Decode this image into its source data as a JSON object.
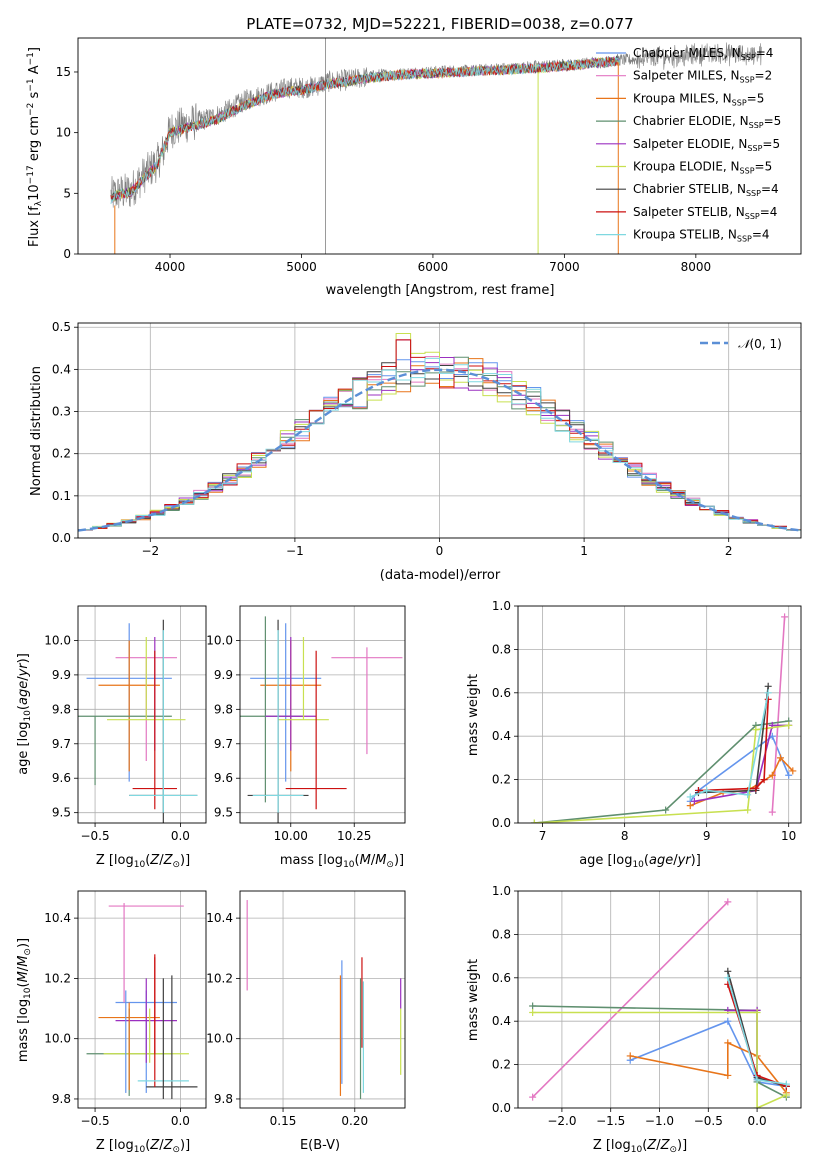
{
  "figure": {
    "title": "PLATE=0732, MJD=52221, FIBERID=0038, z=0.077"
  },
  "series": [
    {
      "name": "Chabrier MILES, N$_{SSP}$=4",
      "label_main": "Chabrier MILES, N",
      "label_sub": "SSP",
      "label_tail": "=4",
      "color": "#6495ED"
    },
    {
      "name": "Salpeter MILES, N$_{SSP}$=2",
      "label_main": "Salpeter MILES, N",
      "label_sub": "SSP",
      "label_tail": "=2",
      "color": "#E377C2"
    },
    {
      "name": "Kroupa MILES, N$_{SSP}$=5",
      "label_main": "Kroupa MILES, N",
      "label_sub": "SSP",
      "label_tail": "=5",
      "color": "#E8751A"
    },
    {
      "name": "Chabrier ELODIE, N$_{SSP}$=5",
      "label_main": "Chabrier ELODIE, N",
      "label_sub": "SSP",
      "label_tail": "=5",
      "color": "#5F8F6F"
    },
    {
      "name": "Salpeter ELODIE, N$_{SSP}$=5",
      "label_main": "Salpeter ELODIE, N",
      "label_sub": "SSP",
      "label_tail": "=5",
      "color": "#9B30C0"
    },
    {
      "name": "Kroupa ELODIE, N$_{SSP}$=5",
      "label_main": "Kroupa ELODIE, N",
      "label_sub": "SSP",
      "label_tail": "=5",
      "color": "#C8E050"
    },
    {
      "name": "Chabrier STELIB, N$_{SSP}$=4",
      "label_main": "Chabrier STELIB, N",
      "label_sub": "SSP",
      "label_tail": "=4",
      "color": "#404040"
    },
    {
      "name": "Salpeter STELIB, N$_{SSP}$=4",
      "label_main": "Salpeter STELIB, N",
      "label_sub": "SSP",
      "label_tail": "=4",
      "color": "#CC1111"
    },
    {
      "name": "Kroupa STELIB, N$_{SSP}$=4",
      "label_main": "Kroupa STELIB, N",
      "label_sub": "SSP",
      "label_tail": "=4",
      "color": "#7FD8E0"
    }
  ],
  "chart_data": [
    {
      "id": "spectrum",
      "type": "line",
      "xlabel": "wavelength [Angstrom, rest frame]",
      "ylabel": "Flux [f$_\\lambda$10$^{-17}$ erg cm$^{-2}$ s$^{-1}$ A$^{-1}$]",
      "ylabel_parts": {
        "a": "Flux [f",
        "b": "λ",
        "c": "10",
        "d": "−17",
        "e": " erg cm",
        "f": "−2",
        "g": " s",
        "h": "−1",
        "i": " A",
        "j": "−1",
        "k": "]"
      },
      "xlim": [
        3300,
        8800
      ],
      "ylim": [
        0,
        17.8
      ],
      "xticks": [
        4000,
        5000,
        6000,
        7000,
        8000
      ],
      "yticks": [
        0,
        5,
        10,
        15
      ],
      "observed": {
        "color": "#808080",
        "x": [
          3550,
          3600,
          3700,
          3800,
          3900,
          3950,
          4000,
          4100,
          4200,
          4300,
          4400,
          4500,
          4600,
          4700,
          4800,
          4900,
          5000,
          5100,
          5200,
          5300,
          5400,
          5500,
          5600,
          5700,
          5800,
          5900,
          6000,
          6100,
          6200,
          6300,
          6400,
          6500,
          6600,
          6700,
          6800,
          6900,
          7000,
          7100,
          7200,
          7300,
          7400,
          7500,
          7600,
          7700,
          7800,
          7900,
          8000,
          8100,
          8200,
          8300,
          8400,
          8500
        ],
        "y": [
          4.8,
          5.0,
          5.2,
          6.5,
          7.5,
          8.5,
          10.2,
          10.6,
          10.9,
          11.2,
          11.6,
          12.2,
          12.8,
          13.1,
          13.4,
          13.7,
          13.7,
          13.8,
          14.2,
          14.3,
          14.4,
          14.6,
          14.8,
          14.8,
          14.9,
          15.0,
          15.0,
          15.1,
          15.1,
          15.1,
          15.2,
          15.3,
          15.3,
          15.4,
          15.5,
          15.5,
          15.6,
          15.6,
          15.8,
          15.8,
          16.0,
          16.0,
          16.1,
          16.2,
          16.3,
          16.3,
          16.4,
          16.5,
          16.5,
          16.4,
          16.4,
          16.5
        ]
      },
      "model": {
        "x": [
          3550,
          3600,
          3700,
          3800,
          3900,
          4000,
          4100,
          4200,
          4300,
          4400,
          4500,
          4600,
          4700,
          4800,
          4900,
          5000,
          5200,
          5400,
          5600,
          5800,
          6000,
          6200,
          6400,
          6600,
          6800,
          7000,
          7200,
          7400
        ],
        "y": [
          4.5,
          4.9,
          5.1,
          6.2,
          7.3,
          10.0,
          10.3,
          10.6,
          10.9,
          11.3,
          11.9,
          12.4,
          12.8,
          13.2,
          13.4,
          13.5,
          14.0,
          14.3,
          14.6,
          14.8,
          14.9,
          15.0,
          15.1,
          15.2,
          15.3,
          15.5,
          15.7,
          15.9
        ]
      }
    },
    {
      "id": "residual_hist",
      "type": "histogram",
      "xlabel": "(data-model)/error",
      "ylabel": "Normed distribution",
      "xlim": [
        -2.5,
        2.5
      ],
      "ylim": [
        0,
        0.51
      ],
      "xticks": [
        -2,
        -1,
        0,
        1,
        2
      ],
      "yticks": [
        0.0,
        0.1,
        0.2,
        0.3,
        0.4,
        0.5
      ],
      "grid": true,
      "legend": {
        "label": "N(0,1)",
        "label_script": "𝒩",
        "label_rest": "(0, 1)",
        "position": "top-right",
        "style": "dashed"
      },
      "bin_edges_start": -2.5,
      "bin_width": 0.1,
      "bins": 50,
      "gaussian": {
        "mu": 0,
        "sigma": 1,
        "color": "#5B8FD6"
      }
    },
    {
      "id": "age_vs_Z",
      "type": "errorbar",
      "xlabel": "Z [log$_{10}$(Z/Z$_\\odot$)]",
      "ylabel": "age  [log$_{10}$(age/yr)]",
      "xlim": [
        -0.6,
        0.15
      ],
      "ylim": [
        9.47,
        10.1
      ],
      "xticks": [
        -0.5,
        0.0
      ],
      "yticks": [
        9.5,
        9.6,
        9.7,
        9.8,
        9.9,
        10.0
      ],
      "points": [
        {
          "series": 0,
          "x": -0.3,
          "y": 9.89,
          "xerr": 0.25,
          "yerr": [
            0.3,
            0.16
          ]
        },
        {
          "series": 1,
          "x": -0.2,
          "y": 9.95,
          "xerr": 0.18,
          "yerr": [
            0.3,
            0.0
          ]
        },
        {
          "series": 2,
          "x": -0.3,
          "y": 9.87,
          "xerr": 0.18,
          "yerr": [
            0.25,
            0.13
          ]
        },
        {
          "series": 3,
          "x": -0.5,
          "y": 9.78,
          "xerr": 0.45,
          "yerr": [
            0.2,
            0.0
          ]
        },
        {
          "series": 4,
          "x": -0.15,
          "y": 9.78,
          "xerr": 0.0,
          "yerr": [
            0.1,
            0.23
          ]
        },
        {
          "series": 5,
          "x": -0.2,
          "y": 9.77,
          "xerr": 0.23,
          "yerr": [
            0.0,
            0.24
          ]
        },
        {
          "series": 6,
          "x": -0.1,
          "y": 9.55,
          "xerr": 0.2,
          "yerr": [
            0.2,
            0.51
          ]
        },
        {
          "series": 7,
          "x": -0.15,
          "y": 9.57,
          "xerr": 0.13,
          "yerr": [
            0.06,
            0.4
          ]
        },
        {
          "series": 8,
          "x": -0.1,
          "y": 9.55,
          "xerr": 0.2,
          "yerr": [
            0.05,
            0.48
          ]
        }
      ]
    },
    {
      "id": "age_vs_mass",
      "type": "errorbar",
      "xlabel": "mass [log$_{10}$(M/M$_\\odot$)]",
      "ylabel": "",
      "xlim": [
        9.8,
        10.45
      ],
      "ylim": [
        9.47,
        10.1
      ],
      "xticks": [
        10.0,
        10.25
      ],
      "yticks": [
        9.5,
        9.6,
        9.7,
        9.8,
        9.9,
        10.0
      ],
      "points": [
        {
          "series": 0,
          "x": 9.98,
          "y": 9.89,
          "xerr": 0.14,
          "yerr": [
            0.3,
            0.16
          ]
        },
        {
          "series": 1,
          "x": 10.3,
          "y": 9.95,
          "xerr": 0.14,
          "yerr": [
            0.28,
            0.03
          ]
        },
        {
          "series": 2,
          "x": 10.0,
          "y": 9.87,
          "xerr": 0.12,
          "yerr": [
            0.25,
            0.13
          ]
        },
        {
          "series": 3,
          "x": 9.9,
          "y": 9.78,
          "xerr": 0.15,
          "yerr": [
            0.25,
            0.29
          ]
        },
        {
          "series": 4,
          "x": 10.0,
          "y": 9.78,
          "xerr": 0.1,
          "yerr": [
            0.1,
            0.23
          ]
        },
        {
          "series": 5,
          "x": 10.05,
          "y": 9.77,
          "xerr": 0.1,
          "yerr": [
            0.0,
            0.24
          ]
        },
        {
          "series": 6,
          "x": 9.95,
          "y": 9.55,
          "xerr": 0.12,
          "yerr": [
            0.2,
            0.51
          ]
        },
        {
          "series": 7,
          "x": 10.1,
          "y": 9.57,
          "xerr": 0.12,
          "yerr": [
            0.06,
            0.4
          ]
        },
        {
          "series": 8,
          "x": 9.95,
          "y": 9.55,
          "xerr": 0.1,
          "yerr": [
            0.05,
            0.48
          ]
        }
      ]
    },
    {
      "id": "weight_vs_age",
      "type": "line",
      "xlabel": "age  [log$_{10}$(age/yr)]",
      "ylabel": "mass weight",
      "xlim": [
        6.7,
        10.15
      ],
      "ylim": [
        0,
        1
      ],
      "xticks": [
        7,
        8,
        9,
        10
      ],
      "yticks": [
        0.0,
        0.2,
        0.4,
        0.6,
        0.8,
        1.0
      ],
      "grid": true,
      "lines": [
        {
          "series": 0,
          "x": [
            8.8,
            8.9,
            9.8,
            10.0
          ],
          "y": [
            0.1,
            0.15,
            0.4,
            0.22
          ]
        },
        {
          "series": 1,
          "x": [
            9.8,
            9.95
          ],
          "y": [
            0.05,
            0.95
          ]
        },
        {
          "series": 2,
          "x": [
            8.8,
            9.2,
            9.5,
            9.8,
            9.9,
            10.05
          ],
          "y": [
            0.08,
            0.14,
            0.15,
            0.22,
            0.3,
            0.24
          ]
        },
        {
          "series": 3,
          "x": [
            6.9,
            8.5,
            9.6,
            10.0
          ],
          "y": [
            0.0,
            0.06,
            0.45,
            0.47
          ]
        },
        {
          "series": 4,
          "x": [
            8.85,
            9.6,
            9.8,
            10.0
          ],
          "y": [
            0.1,
            0.15,
            0.45,
            0.45
          ]
        },
        {
          "series": 5,
          "x": [
            6.9,
            9.5,
            9.6,
            10.0
          ],
          "y": [
            0.0,
            0.06,
            0.43,
            0.45
          ]
        },
        {
          "series": 6,
          "x": [
            8.9,
            9.6,
            9.75
          ],
          "y": [
            0.14,
            0.15,
            0.63
          ]
        },
        {
          "series": 7,
          "x": [
            8.9,
            9.6,
            9.7,
            9.75
          ],
          "y": [
            0.15,
            0.16,
            0.2,
            0.57
          ]
        },
        {
          "series": 8,
          "x": [
            8.8,
            9.0,
            9.5,
            9.75
          ],
          "y": [
            0.12,
            0.15,
            0.13,
            0.6
          ]
        }
      ]
    },
    {
      "id": "mass_vs_Z",
      "type": "errorbar",
      "xlabel": "Z [log$_{10}$(Z/Z$_\\odot$)]",
      "ylabel": "mass [log$_{10}$(M/M$_\\odot$)]",
      "xlim": [
        -0.6,
        0.15
      ],
      "ylim": [
        9.77,
        10.49
      ],
      "xticks": [
        -0.5,
        0.0
      ],
      "yticks": [
        9.8,
        10.0,
        10.2,
        10.4
      ],
      "points": [
        {
          "series": 0,
          "x": -0.2,
          "y": 10.12,
          "xerr": 0.18,
          "yerr": [
            0.3,
            0.04
          ]
        },
        {
          "series": 1,
          "x": -0.2,
          "y": 10.44,
          "xerr": 0.22,
          "yerr": [
            0.0,
            0.0
          ]
        },
        {
          "series": 2,
          "x": -0.3,
          "y": 10.07,
          "xerr": 0.18,
          "yerr": [
            0.0,
            0.0
          ]
        },
        {
          "series": 3,
          "x": -0.3,
          "y": 9.95,
          "xerr": 0.25,
          "yerr": [
            0.14,
            0.15
          ]
        },
        {
          "series": 4,
          "x": -0.2,
          "y": 10.06,
          "xerr": 0.18,
          "yerr": [
            0.0,
            0.0
          ]
        },
        {
          "series": 5,
          "x": -0.2,
          "y": 9.95,
          "xerr": 0.25,
          "yerr": [
            0.0,
            0.0
          ]
        },
        {
          "series": 6,
          "x": -0.05,
          "y": 9.84,
          "xerr": 0.15,
          "yerr": [
            0.04,
            0.37
          ]
        },
        {
          "series": 7,
          "x": -0.15,
          "y": 9.97,
          "xerr": 0.0,
          "yerr": [
            0.13,
            0.3
          ]
        },
        {
          "series": 8,
          "x": -0.1,
          "y": 9.86,
          "xerr": 0.15,
          "yerr": [
            0.0,
            0.0
          ]
        }
      ],
      "verticals": [
        {
          "series": 0,
          "x": -0.32,
          "y": [
            9.82,
            10.16
          ]
        },
        {
          "series": 1,
          "x": -0.33,
          "y": [
            10.12,
            10.45
          ]
        },
        {
          "series": 2,
          "x": -0.3,
          "y": [
            9.83,
            10.12
          ]
        },
        {
          "series": 4,
          "x": -0.2,
          "y": [
            9.92,
            10.2
          ]
        },
        {
          "series": 5,
          "x": -0.18,
          "y": [
            9.92,
            10.1
          ]
        },
        {
          "series": 7,
          "x": -0.15,
          "y": [
            9.95,
            10.28
          ]
        },
        {
          "series": 6,
          "x": -0.1,
          "y": [
            9.8,
            10.2
          ]
        }
      ]
    },
    {
      "id": "mass_vs_ebv",
      "type": "errorbar",
      "xlabel": "E(B-V)",
      "ylabel": "",
      "xlim": [
        0.12,
        0.235
      ],
      "ylim": [
        9.77,
        10.49
      ],
      "xticks": [
        0.15,
        0.2
      ],
      "yticks": [
        9.8,
        10.0,
        10.2,
        10.4
      ],
      "verticals": [
        {
          "series": 1,
          "x": 0.125,
          "y": [
            10.16,
            10.46
          ]
        },
        {
          "series": 2,
          "x": 0.19,
          "y": [
            9.81,
            10.21
          ]
        },
        {
          "series": 0,
          "x": 0.191,
          "y": [
            9.85,
            10.26
          ]
        },
        {
          "series": 7,
          "x": 0.205,
          "y": [
            9.97,
            10.27
          ]
        },
        {
          "series": 3,
          "x": 0.204,
          "y": [
            9.8,
            10.2
          ]
        },
        {
          "series": 8,
          "x": 0.206,
          "y": [
            9.82,
            10.19
          ]
        },
        {
          "series": 4,
          "x": 0.232,
          "y": [
            10.1,
            10.2
          ]
        },
        {
          "series": 5,
          "x": 0.232,
          "y": [
            9.88,
            10.1
          ]
        }
      ]
    },
    {
      "id": "weight_vs_Z",
      "type": "line",
      "xlabel": "Z [log$_{10}$(Z/Z$_\\odot$)]",
      "ylabel": "mass weight",
      "xlim": [
        -2.45,
        0.45
      ],
      "ylim": [
        0,
        1
      ],
      "xticks": [
        -2.0,
        -1.5,
        -1.0,
        -0.5,
        0.0
      ],
      "yticks": [
        0.0,
        0.2,
        0.4,
        0.6,
        0.8,
        1.0
      ],
      "grid": true,
      "lines": [
        {
          "series": 0,
          "x": [
            -1.3,
            -0.3,
            0.0,
            0.3
          ],
          "y": [
            0.22,
            0.4,
            0.12,
            0.1
          ]
        },
        {
          "series": 1,
          "x": [
            -2.3,
            -0.3
          ],
          "y": [
            0.05,
            0.95
          ]
        },
        {
          "series": 2,
          "x": [
            -1.3,
            -0.3,
            -0.3,
            0.0,
            0.3
          ],
          "y": [
            0.24,
            0.15,
            0.3,
            0.24,
            0.07
          ]
        },
        {
          "series": 3,
          "x": [
            -2.3,
            0.0,
            0.0,
            0.3
          ],
          "y": [
            0.47,
            0.45,
            0.12,
            0.05
          ]
        },
        {
          "series": 4,
          "x": [
            -0.3,
            0.0,
            0.0
          ],
          "y": [
            0.45,
            0.45,
            0.13
          ]
        },
        {
          "series": 5,
          "x": [
            -2.3,
            0.0,
            0.0,
            0.3
          ],
          "y": [
            0.44,
            0.44,
            0.0,
            0.06
          ]
        },
        {
          "series": 6,
          "x": [
            -0.3,
            0.0,
            0.3
          ],
          "y": [
            0.63,
            0.14,
            0.1
          ]
        },
        {
          "series": 7,
          "x": [
            -0.3,
            0.0,
            0.3
          ],
          "y": [
            0.57,
            0.15,
            0.1
          ]
        },
        {
          "series": 8,
          "x": [
            -0.3,
            0.0,
            0.3
          ],
          "y": [
            0.6,
            0.13,
            0.11
          ]
        }
      ]
    }
  ]
}
